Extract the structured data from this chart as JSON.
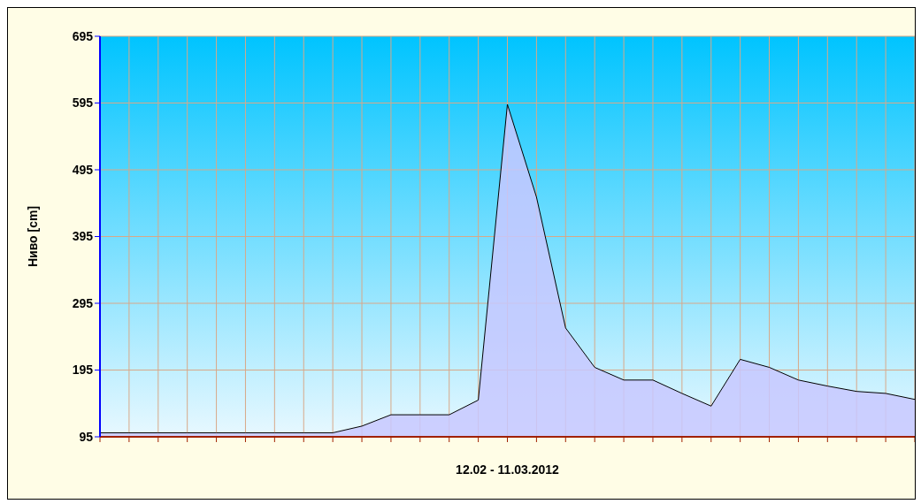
{
  "chart_data": {
    "type": "area",
    "xlabel": "12.02 - 11.03.2012",
    "ylabel": "Ниво [cm]",
    "categories": [
      null,
      null,
      null,
      null,
      null,
      null,
      null,
      null,
      null,
      null,
      null,
      null,
      null,
      null,
      null,
      null,
      null,
      null,
      null,
      null,
      null,
      null,
      null,
      null,
      null,
      null,
      null,
      null,
      null
    ],
    "series": [
      {
        "color": "#c8c8ff",
        "values": [
          101,
          101,
          101,
          101,
          101,
          101,
          101,
          101,
          101,
          111,
          128,
          128,
          128,
          150,
          593,
          454,
          258,
          199,
          180,
          180,
          160,
          141,
          211,
          199,
          180,
          171,
          163,
          160,
          151
        ]
      }
    ],
    "ylim": [
      95,
      695
    ],
    "yticks": [
      95,
      195,
      295,
      395,
      495,
      595,
      695
    ],
    "grid": true
  }
}
